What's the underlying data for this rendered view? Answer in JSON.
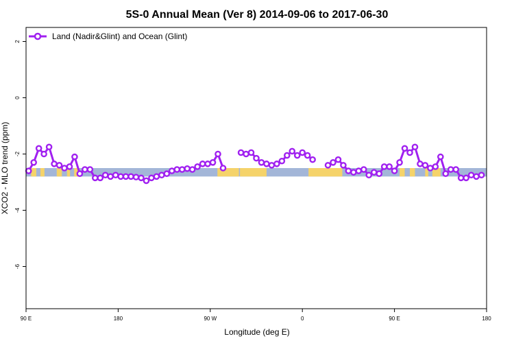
{
  "chart_data": {
    "type": "line",
    "title": "5S-0 Annual Mean (Ver 8)   2014-09-06 to 2017-06-30",
    "xlabel": "Longitude (deg E)",
    "ylabel": "XCO2 - MLO trend (ppm)",
    "xlim": [
      90,
      540
    ],
    "ylim": [
      -7.5,
      2.5
    ],
    "xticks": [
      {
        "value": 90,
        "label": "90 E"
      },
      {
        "value": 180,
        "label": "180"
      },
      {
        "value": 270,
        "label": "90 W"
      },
      {
        "value": 360,
        "label": "0"
      },
      {
        "value": 450,
        "label": "90 E"
      },
      {
        "value": 540,
        "label": "180"
      }
    ],
    "yticks": [
      {
        "value": 2,
        "label": "2"
      },
      {
        "value": 0,
        "label": "0"
      },
      {
        "value": -2,
        "label": "-2"
      },
      {
        "value": -4,
        "label": "-4"
      },
      {
        "value": -6,
        "label": "-6"
      }
    ],
    "grid": false,
    "legend_position": "top-left",
    "series": [
      {
        "name": "Land (Nadir&Glint) and Ocean (Glint)",
        "color": "#a020f0",
        "segments": [
          {
            "x": [
              92.5,
              97.5,
              102.5,
              107.5,
              112.5,
              117.5,
              122.5,
              127.5,
              132.5,
              137.5,
              142.5,
              147.5,
              152.5,
              157.5,
              162.5,
              167.5,
              172.5,
              177.5,
              182.5,
              187.5,
              192.5,
              197.5,
              202.5,
              207.5,
              212.5,
              217.5,
              222.5,
              227.5,
              232.5,
              237.5,
              242.5,
              247.5,
              252.5,
              257.5,
              262.5,
              267.5,
              272.5,
              277.5,
              282.5,
              287.5
            ],
            "y": [
              -2.6,
              -2.3,
              -1.8,
              -2.0,
              -1.75,
              -2.35,
              -2.4,
              -2.5,
              -2.45,
              -2.1,
              -2.7,
              -2.55,
              -2.55,
              -2.85,
              -2.85,
              -2.75,
              -2.8,
              -2.75,
              -2.8,
              -2.8,
              -2.8,
              -2.82,
              -2.85,
              -2.95,
              -2.85,
              -2.8,
              -2.75,
              -2.7,
              -2.6,
              -2.55,
              -2.55,
              -2.52,
              -2.55,
              -2.45,
              -2.35,
              -2.35,
              -2.3,
              -2.0,
              -2.5,
              null
            ]
          },
          {
            "x": [
              300,
              305,
              310,
              315,
              320,
              325,
              330,
              335,
              340,
              345,
              350,
              355,
              360,
              365,
              370,
              375
            ],
            "y": [
              -1.95,
              -2.0,
              -1.95,
              -2.15,
              -2.3,
              -2.35,
              -2.4,
              -2.35,
              -2.25,
              -2.05,
              -1.9,
              -2.05,
              -1.95,
              -2.05,
              -2.2,
              null
            ]
          },
          {
            "x": [
              385,
              390,
              395,
              400,
              405,
              410,
              415,
              420,
              425,
              430,
              435,
              440,
              445,
              450,
              455,
              460,
              465,
              470,
              475,
              480,
              485,
              490,
              495,
              500,
              505,
              510,
              515,
              520,
              525,
              530,
              535,
              540
            ],
            "y": [
              -2.4,
              -2.3,
              -2.2,
              -2.4,
              -2.6,
              -2.65,
              -2.6,
              -2.55,
              -2.75,
              -2.65,
              -2.7,
              -2.45,
              -2.45,
              -2.6,
              -2.3,
              -1.8,
              -1.95,
              -1.75,
              -2.35,
              -2.4,
              -2.5,
              -2.45,
              -2.1,
              -2.7,
              -2.55,
              -2.55,
              -2.85,
              -2.85,
              -2.75,
              -2.8,
              -2.75,
              null
            ]
          }
        ]
      }
    ],
    "bands": [
      {
        "name": "ocean",
        "color": "#a3b6d8",
        "x": [
          90,
          540
        ],
        "y": [
          -2.5,
          -2.8
        ]
      },
      {
        "name": "land",
        "color": "#f5d36a",
        "x": [
          277,
          298
        ],
        "y": [
          -2.5,
          -2.8
        ]
      },
      {
        "name": "land",
        "color": "#f5d36a",
        "x": [
          299,
          325
        ],
        "y": [
          -2.5,
          -2.8
        ]
      },
      {
        "name": "land",
        "color": "#f5d36a",
        "x": [
          366,
          399
        ],
        "y": [
          -2.5,
          -2.8
        ]
      },
      {
        "name": "land",
        "color": "#f5d36a",
        "x": [
          95,
          100
        ],
        "y": [
          -2.5,
          -2.8
        ]
      },
      {
        "name": "land",
        "color": "#f5d36a",
        "x": [
          104,
          108
        ],
        "y": [
          -2.5,
          -2.8
        ]
      },
      {
        "name": "land",
        "color": "#f5d36a",
        "x": [
          120,
          125
        ],
        "y": [
          -2.5,
          -2.8
        ]
      },
      {
        "name": "land",
        "color": "#f5d36a",
        "x": [
          130,
          133
        ],
        "y": [
          -2.5,
          -2.8
        ]
      },
      {
        "name": "land",
        "color": "#f5d36a",
        "x": [
          137,
          142
        ],
        "y": [
          -2.5,
          -2.8
        ]
      },
      {
        "name": "land",
        "color": "#f5d36a",
        "x": [
          455,
          460
        ],
        "y": [
          -2.5,
          -2.8
        ]
      },
      {
        "name": "land",
        "color": "#f5d36a",
        "x": [
          465,
          470
        ],
        "y": [
          -2.5,
          -2.8
        ]
      },
      {
        "name": "land",
        "color": "#f5d36a",
        "x": [
          480,
          483
        ],
        "y": [
          -2.5,
          -2.8
        ]
      },
      {
        "name": "land",
        "color": "#f5d36a",
        "x": [
          487,
          495
        ],
        "y": [
          -2.5,
          -2.8
        ]
      }
    ]
  }
}
